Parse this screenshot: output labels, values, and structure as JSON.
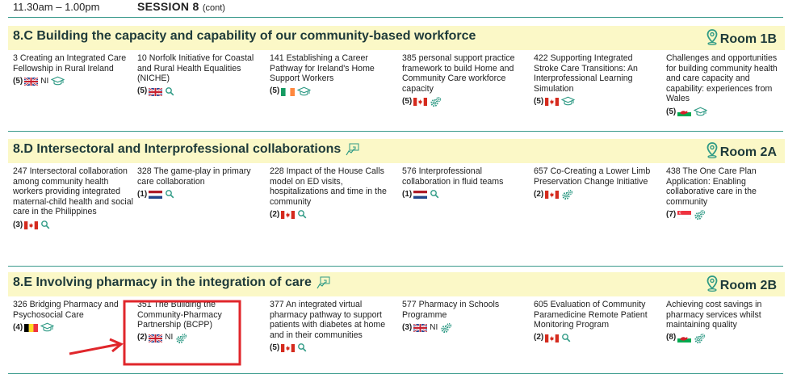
{
  "header": {
    "time": "11.30am – 1.00pm",
    "session": "SESSION 8",
    "session_suffix": "(cont)"
  },
  "sections": [
    {
      "title": "8.C Building the capacity and capability of our community-based workforce",
      "collab_icon": false,
      "room": "Room 1B",
      "cards": [
        {
          "text": "3 Creating an Integrated Care Fellowship in Rural Ireland",
          "count": "(5)",
          "flag": "uk",
          "ni": "NI",
          "icon": "graduation-cap-icon"
        },
        {
          "text": "10 Norfolk Initiative for Coastal and Rural Health Equalities (NICHE)",
          "count": "(5)",
          "flag": "uk",
          "ni": "",
          "icon": "magnifier-icon"
        },
        {
          "text": "141 Establishing a Career Pathway for Ireland's Home Support Workers",
          "count": "(5)",
          "flag": "ireland",
          "ni": "",
          "icon": "graduation-cap-icon"
        },
        {
          "text": "385 personal support practice framework to build Home and Community Care workforce capacity",
          "count": "(5)",
          "flag": "canada",
          "ni": "",
          "icon": "gears-icon"
        },
        {
          "text": "422 Supporting Integrated Stroke Care Transitions: An Interprofessional Learning Simulation",
          "count": "(5)",
          "flag": "canada",
          "ni": "",
          "icon": "graduation-cap-icon"
        },
        {
          "text": "Challenges and opportunities for building community health and care capacity and capability: experiences from Wales",
          "count": "(5)",
          "flag": "wales",
          "ni": "",
          "icon": "graduation-cap-icon"
        }
      ]
    },
    {
      "title": "8.D Intersectoral and Interprofessional collaborations",
      "collab_icon": true,
      "room": "Room 2A",
      "cards": [
        {
          "text": "247 Intersectoral collaboration among community health workers providing integrated maternal-child health and social care in the Philippines",
          "count": "(3)",
          "flag": "canada",
          "ni": "",
          "icon": "magnifier-icon"
        },
        {
          "text": "328 The game-play in primary care collaboration",
          "count": "(1)",
          "flag": "netherlands",
          "ni": "",
          "icon": "magnifier-icon"
        },
        {
          "text": "228 Impact of the House Calls model on ED visits, hospitalizations and time in the community",
          "count": "(2)",
          "flag": "canada",
          "ni": "",
          "icon": "magnifier-icon"
        },
        {
          "text": "576 Interprofessional collaboration in fluid teams",
          "count": "(1)",
          "flag": "netherlands",
          "ni": "",
          "icon": "magnifier-icon"
        },
        {
          "text": "657 Co-Creating a Lower Limb Preservation Change Initiative",
          "count": "(2)",
          "flag": "canada",
          "ni": "",
          "icon": "gears-icon"
        },
        {
          "text": "438 The One Care Plan Application:  Enabling collaborative care in the community",
          "count": "(7)",
          "flag": "singapore",
          "ni": "",
          "icon": "gears-icon"
        }
      ]
    },
    {
      "title": "8.E Involving pharmacy in the integration of care",
      "collab_icon": true,
      "room": "Room 2B",
      "cards": [
        {
          "text": "326 Bridging Pharmacy and Psychosocial Care",
          "count": "(4)",
          "flag": "belgium",
          "ni": "",
          "icon": "graduation-cap-icon"
        },
        {
          "text": "351 The Building the Community-Pharmacy Partnership (BCPP)",
          "count": "(2)",
          "flag": "uk",
          "ni": "NI",
          "icon": "gears-icon"
        },
        {
          "text": "377 An integrated virtual pharmacy pathway to support patients with diabetes at home and in their communities",
          "count": "(5)",
          "flag": "canada",
          "ni": "",
          "icon": "magnifier-icon"
        },
        {
          "text": "577 Pharmacy in Schools Programme",
          "count": "(3)",
          "flag": "uk",
          "ni": "NI",
          "icon": "gears-icon"
        },
        {
          "text": "605 Evaluation of Community Paramedicine Remote Patient Monitoring Program",
          "count": "(2)",
          "flag": "canada",
          "ni": "",
          "icon": "magnifier-icon"
        },
        {
          "text": "Achieving cost savings in pharmacy services whilst maintaining quality",
          "count": "(8)",
          "flag": "wales",
          "ni": "",
          "icon": "gears-icon"
        }
      ]
    }
  ],
  "colors": {
    "band": "#fbf8c7",
    "teal": "#2f9a85",
    "rule": "#3a9a8c",
    "annotation": "#e0262b"
  }
}
